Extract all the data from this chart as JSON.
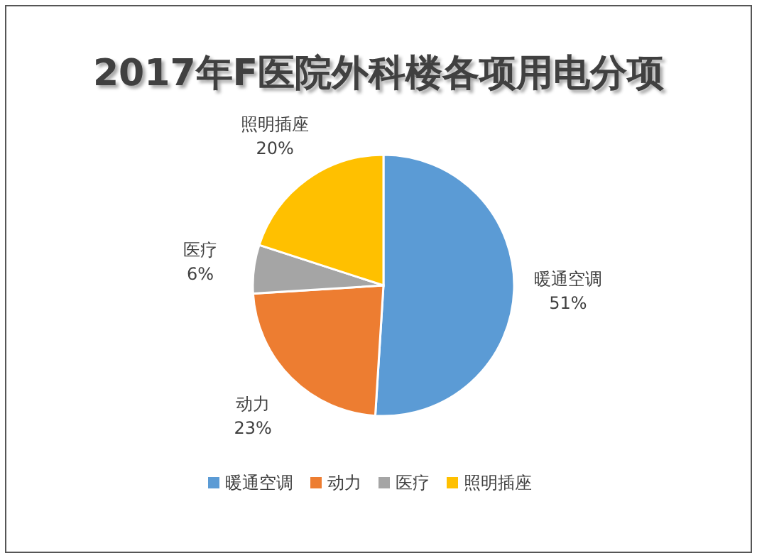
{
  "chart_data": {
    "type": "pie",
    "title": "2017年F医院外科楼各项用电分项",
    "categories": [
      "暖通空调",
      "动力",
      "医疗",
      "照明插座"
    ],
    "values": [
      51,
      23,
      6,
      20
    ],
    "value_labels": [
      "51%",
      "23%",
      "6%",
      "20%"
    ],
    "colors": [
      "#5b9bd5",
      "#ed7d31",
      "#a5a5a5",
      "#ffc000"
    ],
    "legend": "bottom"
  }
}
